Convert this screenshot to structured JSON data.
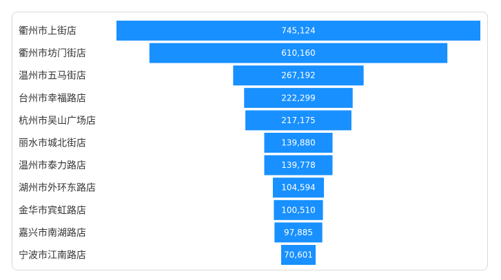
{
  "chart_data": {
    "type": "bar",
    "subtype": "funnel-centered-horizontal",
    "categories": [
      "衢州市上街店",
      "衢州市坊门街店",
      "温州市五马街店",
      "台州市幸福路店",
      "杭州市吴山广场店",
      "丽水市城北街店",
      "温州市泰力路店",
      "湖州市外环东路店",
      "金华市宾虹路店",
      "嘉兴市南湖路店",
      "宁波市江南路店"
    ],
    "values": [
      745124,
      610160,
      267192,
      222299,
      217175,
      139880,
      139778,
      104594,
      100510,
      97885,
      70601
    ],
    "value_labels": [
      "745,124",
      "610,160",
      "267,192",
      "222,299",
      "217,175",
      "139,880",
      "139,778",
      "104,594",
      "100,510",
      "97,885",
      "70,601"
    ],
    "title": "",
    "xlabel": "",
    "ylabel": "",
    "grid": false,
    "legend": "none",
    "colors": {
      "bar": "#1890ff",
      "label": "#333333",
      "value_text": "#ffffff",
      "border": "#d9d9d9"
    }
  }
}
